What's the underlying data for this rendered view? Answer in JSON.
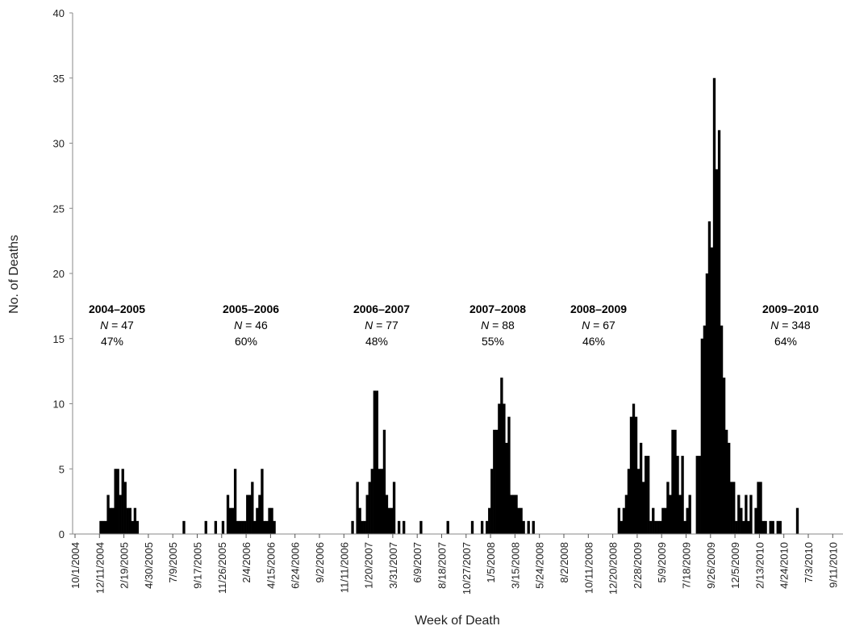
{
  "chart_data": {
    "type": "bar",
    "title": "",
    "xlabel": "Week of Death",
    "ylabel": "No. of Deaths",
    "ylim": [
      0,
      40
    ],
    "yticks": [
      0,
      5,
      10,
      15,
      20,
      25,
      30,
      35,
      40
    ],
    "grid": false,
    "x_tick_interval_weeks": 10,
    "x_tick_labels": [
      "10/1/2004",
      "12/11/2004",
      "2/19/2005",
      "4/30/2005",
      "7/9/2005",
      "9/17/2005",
      "11/26/2005",
      "2/4/2006",
      "4/15/2006",
      "6/24/2006",
      "9/2/2006",
      "11/11/2006",
      "1/20/2007",
      "3/31/2007",
      "6/9/2007",
      "8/18/2007",
      "10/27/2007",
      "1/5/2008",
      "3/15/2008",
      "5/24/2008",
      "8/2/2008",
      "10/11/2008",
      "12/20/2008",
      "2/28/2009",
      "5/9/2009",
      "7/18/2009",
      "9/26/2009",
      "12/5/2009",
      "2/13/2010",
      "4/24/2010",
      "7/3/2010",
      "9/11/2010"
    ],
    "total_weeks": 310,
    "series": [
      {
        "start_week": 10,
        "values": [
          1,
          1,
          1,
          3,
          2,
          2,
          5,
          5,
          3,
          5,
          4,
          2,
          2,
          1,
          2,
          1
        ]
      },
      {
        "start_week": 44,
        "values": [
          1
        ]
      },
      {
        "start_week": 53,
        "values": [
          1
        ]
      },
      {
        "start_week": 57,
        "values": [
          1
        ]
      },
      {
        "start_week": 60,
        "values": [
          1
        ]
      },
      {
        "start_week": 62,
        "values": [
          3,
          2,
          2,
          5,
          1,
          1,
          1,
          1,
          3,
          3,
          4,
          1,
          2,
          3,
          5,
          1,
          1,
          2,
          2,
          1
        ]
      },
      {
        "start_week": 113,
        "values": [
          1,
          0,
          4,
          2,
          1,
          1,
          3,
          4,
          5,
          11,
          11,
          5,
          5,
          8,
          3,
          2,
          2,
          4,
          0,
          1,
          0,
          1
        ]
      },
      {
        "start_week": 141,
        "values": [
          1
        ]
      },
      {
        "start_week": 152,
        "values": [
          1
        ]
      },
      {
        "start_week": 162,
        "values": [
          1
        ]
      },
      {
        "start_week": 166,
        "values": [
          1
        ]
      },
      {
        "start_week": 168,
        "values": [
          1,
          2,
          5,
          8,
          8,
          10,
          12,
          10,
          7,
          9,
          3,
          3,
          3,
          2,
          2,
          1,
          0,
          1,
          0,
          1
        ]
      },
      {
        "start_week": 222,
        "values": [
          2,
          1,
          2,
          3,
          5,
          9,
          10,
          9,
          5,
          7,
          4,
          6,
          6,
          1,
          2,
          1,
          1,
          1,
          2,
          2,
          4,
          3,
          8,
          8,
          6,
          3,
          6,
          1,
          2,
          3
        ]
      },
      {
        "start_week": 254,
        "values": [
          6,
          6,
          15,
          16,
          20,
          24,
          22,
          35,
          28,
          31,
          16,
          12,
          8,
          7,
          4,
          4,
          1,
          3,
          2,
          1,
          3,
          1,
          3,
          0,
          2,
          4,
          4,
          1,
          1,
          0,
          1,
          1,
          0,
          1,
          1,
          0,
          0,
          0,
          0,
          0,
          0,
          2
        ]
      }
    ],
    "annotations": [
      {
        "season": "2004–2005",
        "n_label": "N",
        "n_value": " = 47",
        "pct": "47%"
      },
      {
        "season": "2005–2006",
        "n_label": "N",
        "n_value": " = 46",
        "pct": "60%"
      },
      {
        "season": "2006–2007",
        "n_label": "N",
        "n_value": " = 77",
        "pct": "48%"
      },
      {
        "season": "2007–2008",
        "n_label": "N",
        "n_value": " = 88",
        "pct": "55%"
      },
      {
        "season": "2008–2009",
        "n_label": "N",
        "n_value": " = 67",
        "pct": "46%"
      },
      {
        "season": "2009–2010",
        "n_label": "N",
        "n_value": " = 348",
        "pct": "64%"
      }
    ],
    "bar_color": "#000000",
    "axis_color": "#888888"
  }
}
